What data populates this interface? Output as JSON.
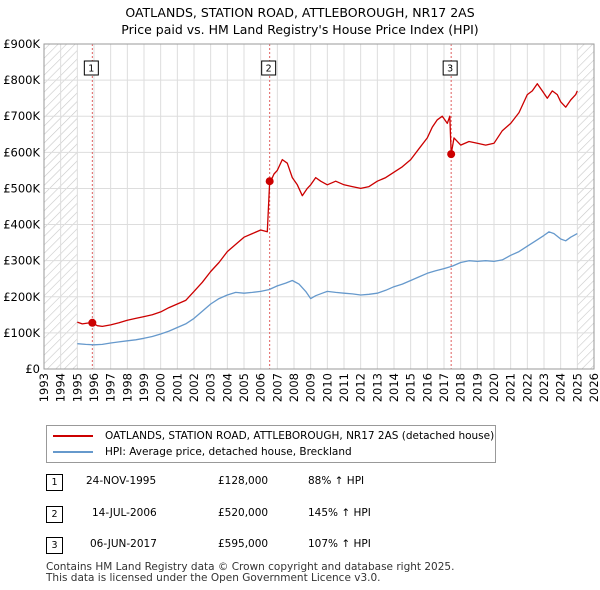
{
  "title": {
    "line1": "OATLANDS, STATION ROAD, ATTLEBOROUGH, NR17 2AS",
    "line2": "Price paid vs. HM Land Registry's House Price Index (HPI)"
  },
  "chart_data": {
    "type": "line",
    "title": "OATLANDS, STATION ROAD, ATTLEBOROUGH, NR17 2AS - Price paid vs. HM Land Registry's House Price Index (HPI)",
    "xlim": [
      1993,
      2026
    ],
    "ylim": [
      0,
      900000
    ],
    "x_ticks": [
      "1993",
      "1994",
      "1995",
      "1996",
      "1997",
      "1998",
      "1999",
      "2000",
      "2001",
      "2002",
      "2003",
      "2004",
      "2005",
      "2006",
      "2007",
      "2008",
      "2009",
      "2010",
      "2011",
      "2012",
      "2013",
      "2014",
      "2015",
      "2016",
      "2017",
      "2018",
      "2019",
      "2020",
      "2021",
      "2022",
      "2023",
      "2024",
      "2025",
      "2026"
    ],
    "y_ticks": [
      {
        "value": 0,
        "label": "£0"
      },
      {
        "value": 100000,
        "label": "£100K"
      },
      {
        "value": 200000,
        "label": "£200K"
      },
      {
        "value": 300000,
        "label": "£300K"
      },
      {
        "value": 400000,
        "label": "£400K"
      },
      {
        "value": 500000,
        "label": "£500K"
      },
      {
        "value": 600000,
        "label": "£600K"
      },
      {
        "value": 700000,
        "label": "£700K"
      },
      {
        "value": 800000,
        "label": "£800K"
      },
      {
        "value": 900000,
        "label": "£900K"
      }
    ],
    "hatched_ranges": [
      [
        1993,
        1995.0
      ],
      [
        2025.0,
        2026
      ]
    ],
    "grid": true,
    "series": [
      {
        "name": "OATLANDS, STATION ROAD, ATTLEBOROUGH, NR17 2AS (detached house)",
        "color": "#cc0000",
        "x": [
          1995.0,
          1995.3,
          1995.6,
          1995.9,
          1996.2,
          1996.5,
          1997.0,
          1997.5,
          1998.0,
          1998.5,
          1999.0,
          1999.5,
          2000.0,
          2000.5,
          2001.0,
          2001.5,
          2002.0,
          2002.5,
          2003.0,
          2003.5,
          2004.0,
          2004.5,
          2005.0,
          2005.5,
          2006.0,
          2006.4,
          2006.54,
          2006.6,
          2006.8,
          2007.0,
          2007.3,
          2007.6,
          2007.9,
          2008.2,
          2008.5,
          2008.8,
          2009.0,
          2009.3,
          2009.6,
          2010.0,
          2010.5,
          2011.0,
          2011.5,
          2012.0,
          2012.5,
          2013.0,
          2013.5,
          2014.0,
          2014.5,
          2015.0,
          2015.5,
          2016.0,
          2016.3,
          2016.6,
          2016.9,
          2017.2,
          2017.35,
          2017.43,
          2017.6,
          2018.0,
          2018.5,
          2019.0,
          2019.5,
          2020.0,
          2020.5,
          2021.0,
          2021.5,
          2022.0,
          2022.3,
          2022.6,
          2022.9,
          2023.2,
          2023.5,
          2023.8,
          2024.0,
          2024.3,
          2024.6,
          2024.9,
          2025.0
        ],
        "values": [
          130000,
          125000,
          127000,
          128000,
          120000,
          118000,
          122000,
          128000,
          135000,
          140000,
          145000,
          150000,
          158000,
          170000,
          180000,
          190000,
          215000,
          240000,
          270000,
          295000,
          325000,
          345000,
          365000,
          375000,
          385000,
          380000,
          520000,
          520000,
          540000,
          550000,
          580000,
          570000,
          530000,
          510000,
          480000,
          500000,
          510000,
          530000,
          520000,
          510000,
          520000,
          510000,
          505000,
          500000,
          505000,
          520000,
          530000,
          545000,
          560000,
          580000,
          610000,
          640000,
          670000,
          690000,
          700000,
          680000,
          700000,
          595000,
          640000,
          620000,
          630000,
          625000,
          620000,
          625000,
          660000,
          680000,
          710000,
          760000,
          770000,
          790000,
          770000,
          750000,
          770000,
          760000,
          740000,
          725000,
          745000,
          760000,
          770000
        ]
      },
      {
        "name": "HPI: Average price, detached house, Breckland",
        "color": "#6699cc",
        "x": [
          1995.0,
          1995.5,
          1996.0,
          1996.5,
          1997.0,
          1997.5,
          1998.0,
          1998.5,
          1999.0,
          1999.5,
          2000.0,
          2000.5,
          2001.0,
          2001.5,
          2002.0,
          2002.5,
          2003.0,
          2003.5,
          2004.0,
          2004.5,
          2005.0,
          2005.5,
          2006.0,
          2006.5,
          2007.0,
          2007.5,
          2007.9,
          2008.3,
          2008.7,
          2009.0,
          2009.3,
          2009.7,
          2010.0,
          2010.5,
          2011.0,
          2011.5,
          2012.0,
          2012.5,
          2013.0,
          2013.5,
          2014.0,
          2014.5,
          2015.0,
          2015.5,
          2016.0,
          2016.5,
          2017.0,
          2017.5,
          2018.0,
          2018.5,
          2019.0,
          2019.5,
          2020.0,
          2020.5,
          2021.0,
          2021.5,
          2022.0,
          2022.5,
          2023.0,
          2023.3,
          2023.6,
          2024.0,
          2024.3,
          2024.6,
          2025.0
        ],
        "values": [
          70000,
          68000,
          67000,
          68000,
          72000,
          75000,
          78000,
          81000,
          85000,
          90000,
          97000,
          105000,
          115000,
          125000,
          140000,
          160000,
          180000,
          195000,
          205000,
          212000,
          210000,
          212000,
          215000,
          220000,
          230000,
          238000,
          245000,
          235000,
          215000,
          195000,
          203000,
          210000,
          215000,
          212000,
          210000,
          208000,
          205000,
          207000,
          210000,
          218000,
          228000,
          235000,
          245000,
          255000,
          265000,
          272000,
          278000,
          285000,
          295000,
          300000,
          298000,
          300000,
          298000,
          302000,
          315000,
          325000,
          340000,
          355000,
          370000,
          380000,
          375000,
          360000,
          355000,
          365000,
          375000
        ]
      }
    ],
    "sales": [
      {
        "label": "1",
        "x": 1995.9,
        "value": 128000
      },
      {
        "label": "2",
        "x": 2006.54,
        "value": 520000
      },
      {
        "label": "3",
        "x": 2017.43,
        "value": 595000
      }
    ]
  },
  "legend": {
    "items": [
      {
        "label": "OATLANDS, STATION ROAD, ATTLEBOROUGH, NR17 2AS (detached house)",
        "color": "#cc0000"
      },
      {
        "label": "HPI: Average price, detached house, Breckland",
        "color": "#6699cc"
      }
    ]
  },
  "transactions": [
    {
      "num": "1",
      "date": "24-NOV-1995",
      "price": "£128,000",
      "hpi": "88% ↑ HPI"
    },
    {
      "num": "2",
      "date": "14-JUL-2006",
      "price": "£520,000",
      "hpi": "145% ↑ HPI"
    },
    {
      "num": "3",
      "date": "06-JUN-2017",
      "price": "£595,000",
      "hpi": "107% ↑ HPI"
    }
  ],
  "footer": {
    "line1": "Contains HM Land Registry data © Crown copyright and database right 2025.",
    "line2": "This data is licensed under the Open Government Licence v3.0."
  }
}
